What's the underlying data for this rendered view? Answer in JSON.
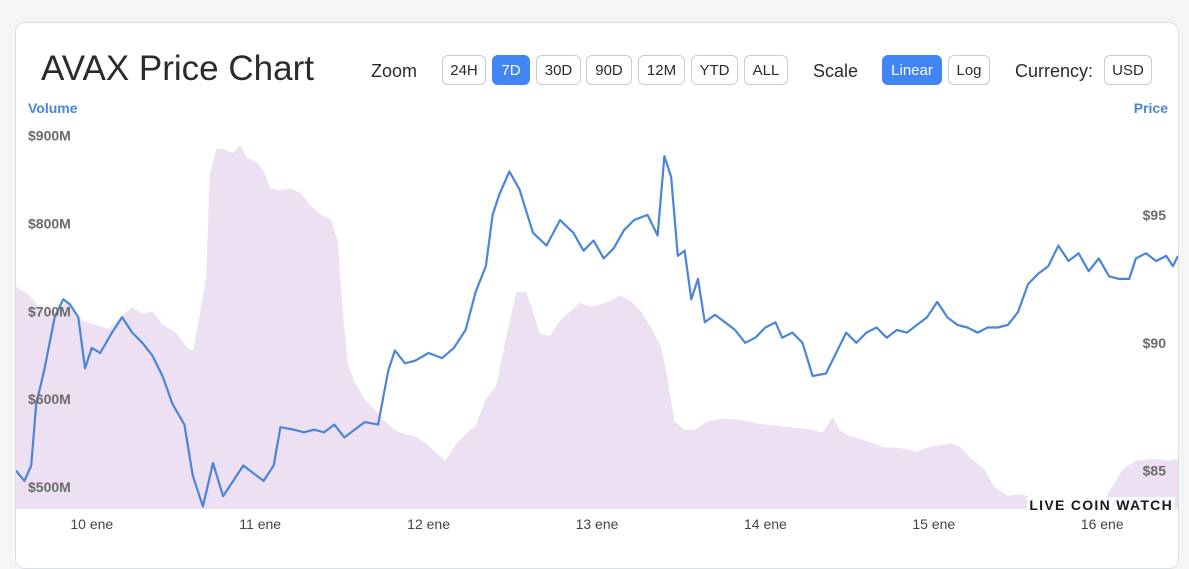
{
  "header": {
    "title": "AVAX Price Chart",
    "zoom_label": "Zoom",
    "zoom_options": [
      "24H",
      "7D",
      "30D",
      "90D",
      "12M",
      "YTD",
      "ALL"
    ],
    "zoom_selected": "7D",
    "scale_label": "Scale",
    "scale_options": [
      "Linear",
      "Log"
    ],
    "scale_selected": "Linear",
    "currency_label": "Currency:",
    "currency_value": "USD"
  },
  "watermark": "LIVE COIN WATCH",
  "colors": {
    "price_line": "#4a85d8",
    "volume_fill": "#ece0f2",
    "accent": "#4285f4"
  },
  "chart_data": {
    "type": "line",
    "x_axis": {
      "ticks": [
        "10 ene",
        "11 ene",
        "12 ene",
        "13 ene",
        "14 ene",
        "15 ene",
        "16 ene"
      ],
      "range": [
        -0.45,
        6.45
      ]
    },
    "y_left": {
      "label": "Volume",
      "ticks": [
        "$500M",
        "$600M",
        "$700M",
        "$800M",
        "$900M"
      ],
      "tick_values": [
        500,
        600,
        700,
        800,
        900
      ],
      "range": [
        475,
        935
      ]
    },
    "y_right": {
      "label": "Price",
      "ticks": [
        "$85",
        "$90",
        "$95"
      ],
      "tick_values": [
        85,
        90,
        95
      ],
      "range": [
        83.5,
        99.3
      ]
    },
    "series": [
      {
        "name": "Price",
        "points": [
          [
            -0.45,
            85.0
          ],
          [
            -0.4,
            84.6
          ],
          [
            -0.36,
            85.2
          ],
          [
            -0.33,
            87.6
          ],
          [
            -0.28,
            89.0
          ],
          [
            -0.22,
            91.0
          ],
          [
            -0.17,
            91.7
          ],
          [
            -0.13,
            91.5
          ],
          [
            -0.08,
            91.0
          ],
          [
            -0.04,
            89.0
          ],
          [
            0.0,
            89.8
          ],
          [
            0.05,
            89.6
          ],
          [
            0.12,
            90.4
          ],
          [
            0.18,
            91.0
          ],
          [
            0.24,
            90.4
          ],
          [
            0.3,
            90.0
          ],
          [
            0.36,
            89.5
          ],
          [
            0.42,
            88.7
          ],
          [
            0.48,
            87.6
          ],
          [
            0.55,
            86.8
          ],
          [
            0.6,
            84.8
          ],
          [
            0.66,
            83.6
          ],
          [
            0.72,
            85.3
          ],
          [
            0.78,
            84.0
          ],
          [
            0.84,
            84.6
          ],
          [
            0.9,
            85.2
          ],
          [
            0.96,
            84.9
          ],
          [
            1.02,
            84.6
          ],
          [
            1.08,
            85.2
          ],
          [
            1.12,
            86.7
          ],
          [
            1.2,
            86.6
          ],
          [
            1.26,
            86.5
          ],
          [
            1.32,
            86.6
          ],
          [
            1.38,
            86.5
          ],
          [
            1.44,
            86.8
          ],
          [
            1.5,
            86.3
          ],
          [
            1.56,
            86.6
          ],
          [
            1.62,
            86.9
          ],
          [
            1.7,
            86.8
          ],
          [
            1.76,
            88.9
          ],
          [
            1.8,
            89.7
          ],
          [
            1.86,
            89.2
          ],
          [
            1.92,
            89.3
          ],
          [
            2.0,
            89.6
          ],
          [
            2.08,
            89.4
          ],
          [
            2.15,
            89.8
          ],
          [
            2.22,
            90.5
          ],
          [
            2.28,
            92.0
          ],
          [
            2.34,
            93.0
          ],
          [
            2.38,
            95.0
          ],
          [
            2.42,
            95.8
          ],
          [
            2.48,
            96.7
          ],
          [
            2.54,
            96.0
          ],
          [
            2.62,
            94.3
          ],
          [
            2.7,
            93.8
          ],
          [
            2.78,
            94.8
          ],
          [
            2.86,
            94.3
          ],
          [
            2.92,
            93.6
          ],
          [
            2.98,
            94.0
          ],
          [
            3.04,
            93.3
          ],
          [
            3.1,
            93.7
          ],
          [
            3.16,
            94.4
          ],
          [
            3.22,
            94.8
          ],
          [
            3.3,
            95.0
          ],
          [
            3.36,
            94.2
          ],
          [
            3.4,
            97.3
          ],
          [
            3.44,
            96.5
          ],
          [
            3.48,
            93.4
          ],
          [
            3.52,
            93.6
          ],
          [
            3.56,
            91.7
          ],
          [
            3.6,
            92.5
          ],
          [
            3.64,
            90.8
          ],
          [
            3.7,
            91.1
          ],
          [
            3.76,
            90.8
          ],
          [
            3.82,
            90.5
          ],
          [
            3.88,
            90.0
          ],
          [
            3.94,
            90.2
          ],
          [
            4.0,
            90.6
          ],
          [
            4.06,
            90.8
          ],
          [
            4.1,
            90.2
          ],
          [
            4.16,
            90.4
          ],
          [
            4.22,
            90.0
          ],
          [
            4.28,
            88.7
          ],
          [
            4.36,
            88.8
          ],
          [
            4.42,
            89.6
          ],
          [
            4.48,
            90.4
          ],
          [
            4.54,
            90.0
          ],
          [
            4.6,
            90.4
          ],
          [
            4.66,
            90.6
          ],
          [
            4.72,
            90.2
          ],
          [
            4.78,
            90.5
          ],
          [
            4.84,
            90.4
          ],
          [
            4.9,
            90.7
          ],
          [
            4.96,
            91.0
          ],
          [
            5.02,
            91.6
          ],
          [
            5.08,
            91.0
          ],
          [
            5.14,
            90.7
          ],
          [
            5.2,
            90.6
          ],
          [
            5.26,
            90.4
          ],
          [
            5.32,
            90.6
          ],
          [
            5.38,
            90.6
          ],
          [
            5.44,
            90.7
          ],
          [
            5.5,
            91.2
          ],
          [
            5.56,
            92.3
          ],
          [
            5.62,
            92.7
          ],
          [
            5.68,
            93.0
          ],
          [
            5.74,
            93.8
          ],
          [
            5.8,
            93.2
          ],
          [
            5.86,
            93.5
          ],
          [
            5.92,
            92.8
          ],
          [
            5.98,
            93.3
          ],
          [
            6.04,
            92.6
          ],
          [
            6.1,
            92.5
          ],
          [
            6.16,
            92.5
          ],
          [
            6.2,
            93.3
          ],
          [
            6.26,
            93.5
          ],
          [
            6.32,
            93.2
          ],
          [
            6.38,
            93.4
          ],
          [
            6.42,
            93.0
          ],
          [
            6.45,
            93.4
          ]
        ]
      },
      {
        "name": "Volume",
        "points": [
          [
            -0.45,
            728
          ],
          [
            -0.38,
            720
          ],
          [
            -0.3,
            702
          ],
          [
            -0.22,
            700
          ],
          [
            -0.14,
            712
          ],
          [
            -0.06,
            690
          ],
          [
            0.02,
            685
          ],
          [
            0.1,
            680
          ],
          [
            0.18,
            695
          ],
          [
            0.24,
            705
          ],
          [
            0.3,
            697
          ],
          [
            0.36,
            700
          ],
          [
            0.42,
            685
          ],
          [
            0.5,
            676
          ],
          [
            0.56,
            660
          ],
          [
            0.6,
            655
          ],
          [
            0.64,
            695
          ],
          [
            0.68,
            740
          ],
          [
            0.7,
            855
          ],
          [
            0.74,
            885
          ],
          [
            0.78,
            885
          ],
          [
            0.84,
            880
          ],
          [
            0.88,
            890
          ],
          [
            0.92,
            875
          ],
          [
            0.98,
            870
          ],
          [
            1.02,
            860
          ],
          [
            1.06,
            840
          ],
          [
            1.12,
            838
          ],
          [
            1.18,
            840
          ],
          [
            1.24,
            835
          ],
          [
            1.3,
            820
          ],
          [
            1.36,
            810
          ],
          [
            1.42,
            805
          ],
          [
            1.46,
            780
          ],
          [
            1.49,
            700
          ],
          [
            1.52,
            640
          ],
          [
            1.56,
            620
          ],
          [
            1.62,
            600
          ],
          [
            1.68,
            588
          ],
          [
            1.74,
            575
          ],
          [
            1.8,
            565
          ],
          [
            1.86,
            560
          ],
          [
            1.92,
            558
          ],
          [
            1.98,
            550
          ],
          [
            2.04,
            540
          ],
          [
            2.1,
            530
          ],
          [
            2.16,
            548
          ],
          [
            2.22,
            560
          ],
          [
            2.28,
            570
          ],
          [
            2.34,
            600
          ],
          [
            2.4,
            615
          ],
          [
            2.46,
            670
          ],
          [
            2.52,
            722
          ],
          [
            2.58,
            722
          ],
          [
            2.62,
            700
          ],
          [
            2.66,
            675
          ],
          [
            2.72,
            672
          ],
          [
            2.78,
            690
          ],
          [
            2.84,
            700
          ],
          [
            2.9,
            710
          ],
          [
            2.96,
            705
          ],
          [
            3.02,
            708
          ],
          [
            3.08,
            712
          ],
          [
            3.14,
            718
          ],
          [
            3.2,
            712
          ],
          [
            3.26,
            700
          ],
          [
            3.32,
            682
          ],
          [
            3.38,
            660
          ],
          [
            3.42,
            622
          ],
          [
            3.46,
            575
          ],
          [
            3.52,
            565
          ],
          [
            3.58,
            565
          ],
          [
            3.66,
            575
          ],
          [
            3.76,
            578
          ],
          [
            3.86,
            576
          ],
          [
            3.96,
            572
          ],
          [
            4.06,
            570
          ],
          [
            4.16,
            568
          ],
          [
            4.26,
            566
          ],
          [
            4.34,
            562
          ],
          [
            4.4,
            580
          ],
          [
            4.44,
            565
          ],
          [
            4.5,
            558
          ],
          [
            4.56,
            555
          ],
          [
            4.64,
            550
          ],
          [
            4.7,
            545
          ],
          [
            4.76,
            545
          ],
          [
            4.84,
            543
          ],
          [
            4.9,
            540
          ],
          [
            4.96,
            545
          ],
          [
            5.04,
            548
          ],
          [
            5.1,
            550
          ],
          [
            5.16,
            545
          ],
          [
            5.22,
            533
          ],
          [
            5.3,
            520
          ],
          [
            5.36,
            500
          ],
          [
            5.44,
            490
          ],
          [
            5.52,
            492
          ],
          [
            5.6,
            487
          ],
          [
            5.7,
            482
          ],
          [
            5.8,
            480
          ],
          [
            5.9,
            481
          ],
          [
            6.0,
            482
          ],
          [
            6.06,
            500
          ],
          [
            6.12,
            520
          ],
          [
            6.2,
            530
          ],
          [
            6.3,
            532
          ],
          [
            6.4,
            530
          ],
          [
            6.45,
            532
          ]
        ]
      }
    ]
  }
}
